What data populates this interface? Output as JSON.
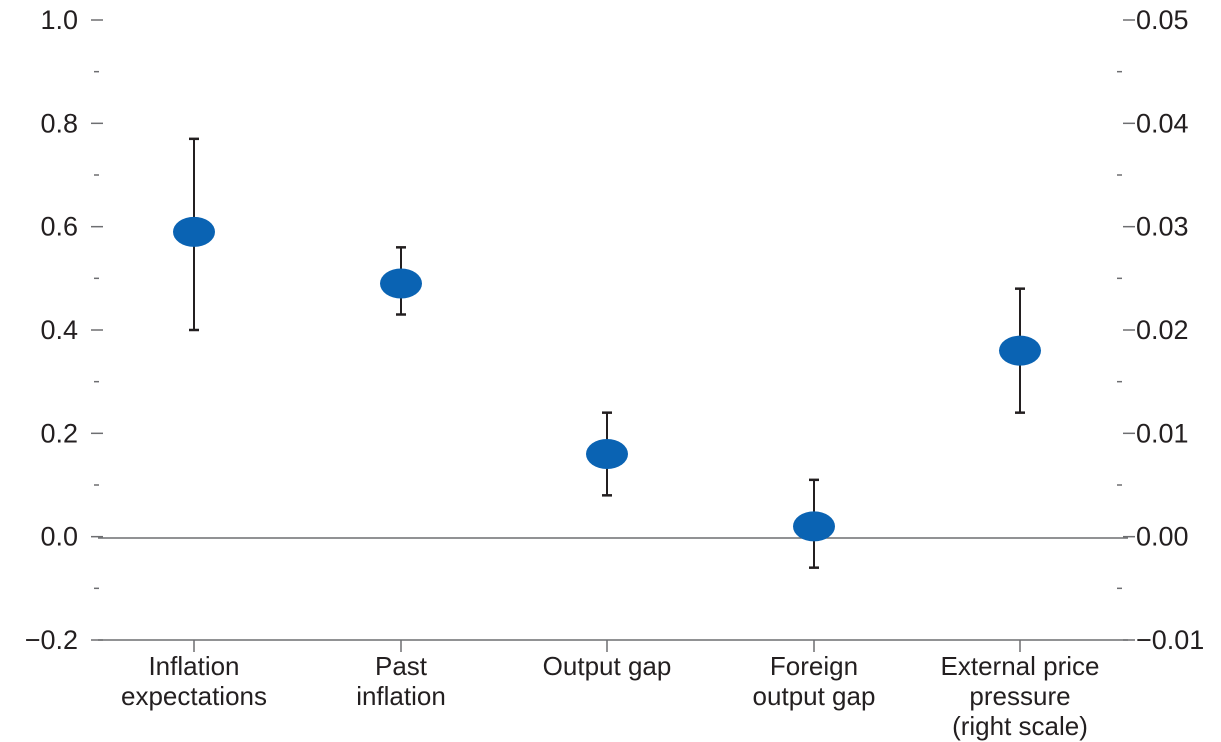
{
  "chart_data": {
    "type": "scatter",
    "title": "",
    "xlabel": "",
    "ylabel": "",
    "categories": [
      [
        "Inflation",
        "expectations"
      ],
      [
        "Past",
        "inflation"
      ],
      [
        "Output gap"
      ],
      [
        "Foreign",
        "output gap"
      ],
      [
        "External price",
        "pressure",
        "(right scale)"
      ]
    ],
    "points": [
      {
        "value": 0.59,
        "lower": 0.4,
        "upper": 0.77,
        "axis": "left"
      },
      {
        "value": 0.49,
        "lower": 0.43,
        "upper": 0.56,
        "axis": "left"
      },
      {
        "value": 0.16,
        "lower": 0.08,
        "upper": 0.24,
        "axis": "left"
      },
      {
        "value": 0.02,
        "lower": -0.06,
        "upper": 0.11,
        "axis": "left"
      },
      {
        "value": 0.018,
        "lower": 0.012,
        "upper": 0.024,
        "axis": "right"
      }
    ],
    "left_axis": {
      "ylim": [
        -0.2,
        1.0
      ],
      "ticks": [
        -0.2,
        0.0,
        0.2,
        0.4,
        0.6,
        0.8,
        1.0
      ],
      "tick_labels": [
        "−0.2",
        "0.0",
        "0.2",
        "0.4",
        "0.6",
        "0.8",
        "1.0"
      ],
      "minor_ticks": [
        -0.1,
        0.1,
        0.3,
        0.5,
        0.7,
        0.9
      ]
    },
    "right_axis": {
      "ylim": [
        -0.01,
        0.05
      ],
      "ticks": [
        -0.01,
        0.0,
        0.01,
        0.02,
        0.03,
        0.04,
        0.05
      ],
      "tick_labels": [
        "−0.01",
        "0.00",
        "0.01",
        "0.02",
        "0.03",
        "0.04",
        "0.05"
      ],
      "minor_ticks": [
        -0.005,
        0.005,
        0.015,
        0.025,
        0.035,
        0.045
      ]
    },
    "zero_line": true,
    "grid": false,
    "legend": "none",
    "colors": {
      "marker": "#0a63b3",
      "errorbar": "#231f20",
      "axis": "#6d6e71",
      "text": "#231f20"
    }
  }
}
